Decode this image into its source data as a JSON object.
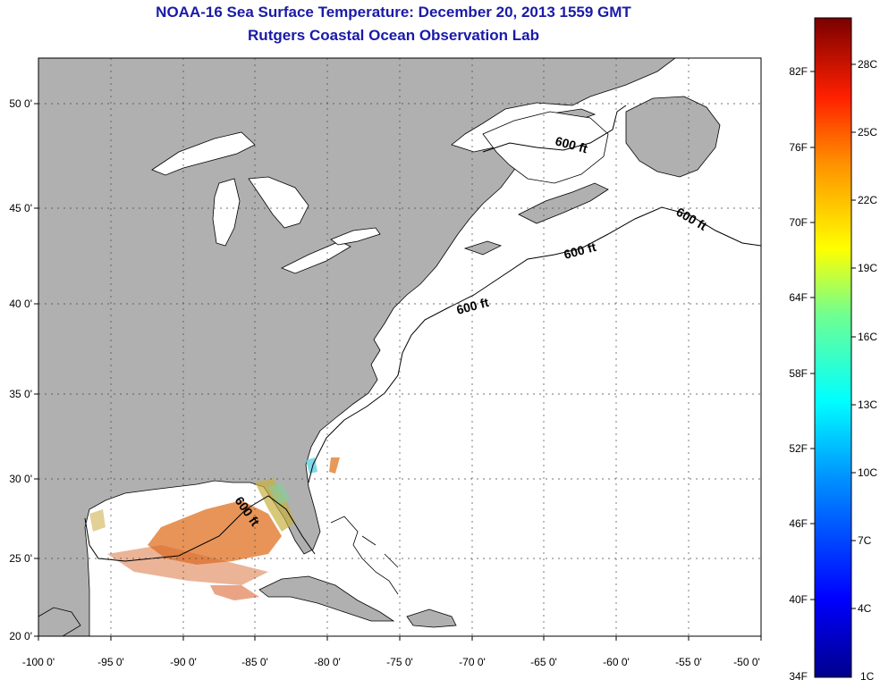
{
  "header": {
    "title": "NOAA-16 Sea Surface Temperature:  December 20, 2013 1559 GMT",
    "subtitle": "Rutgers Coastal Ocean Observation Lab"
  },
  "axes": {
    "x_ticks": [
      "-100 0'",
      "-95 0'",
      "-90 0'",
      "-85 0'",
      "-80 0'",
      "-75 0'",
      "-70 0'",
      "-65 0'",
      "-60 0'",
      "-55 0'",
      "-50 0'"
    ],
    "y_ticks": [
      "50 0'",
      "45 0'",
      "40 0'",
      "35 0'",
      "30 0'",
      "25 0'",
      "20 0'"
    ],
    "x_range": [
      -100,
      -50
    ],
    "y_range": [
      20,
      52.5
    ]
  },
  "contour_labels": [
    "600 ft",
    "600 ft",
    "600 ft",
    "600 ft",
    "600 ft"
  ],
  "colorbar": {
    "f_labels": [
      "82F",
      "76F",
      "70F",
      "64F",
      "58F",
      "52F",
      "46F",
      "40F",
      "34F"
    ],
    "c_labels": [
      "28C",
      "25C",
      "22C",
      "19C",
      "16C",
      "13C",
      "10C",
      "7C",
      "4C",
      "1C"
    ]
  },
  "colors": {
    "land": "#b0b0b0",
    "title": "#1a1aa8"
  }
}
